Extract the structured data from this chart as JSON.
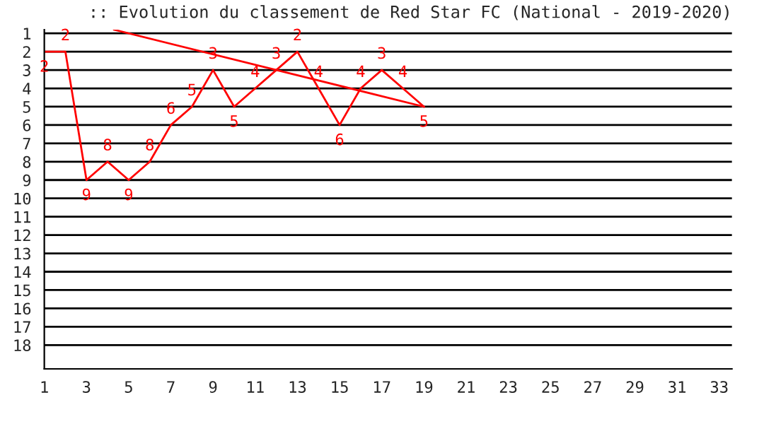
{
  "chart_data": {
    "type": "line",
    "title": ":: Evolution du classement de Red Star FC (National - 2019-2020)",
    "x": [
      1,
      2,
      3,
      4,
      5,
      6,
      7,
      8,
      9,
      10,
      11,
      12,
      13,
      14,
      15,
      16,
      17,
      18,
      19
    ],
    "series": [
      {
        "color": "#ff0000",
        "values": [
          2,
          2,
          9,
          8,
          9,
          8,
          6,
          5,
          3,
          5,
          4,
          3,
          2,
          4,
          6,
          4,
          3,
          4,
          5
        ],
        "data_labels": true
      },
      {
        "type": "line",
        "color": "#ff0000",
        "x": [
          4.3,
          19
        ],
        "values": [
          0.8,
          5
        ]
      }
    ],
    "xlim": [
      1,
      33.6
    ],
    "xticks": [
      1,
      3,
      5,
      7,
      9,
      11,
      13,
      15,
      17,
      19,
      21,
      23,
      25,
      27,
      29,
      31,
      33
    ],
    "ylim": [
      19.3,
      0.8
    ],
    "yticks": [
      1,
      2,
      3,
      4,
      5,
      6,
      7,
      8,
      9,
      10,
      11,
      12,
      13,
      14,
      15,
      16,
      17,
      18
    ],
    "grid": "y",
    "marker": "none",
    "line_style": "solid"
  }
}
